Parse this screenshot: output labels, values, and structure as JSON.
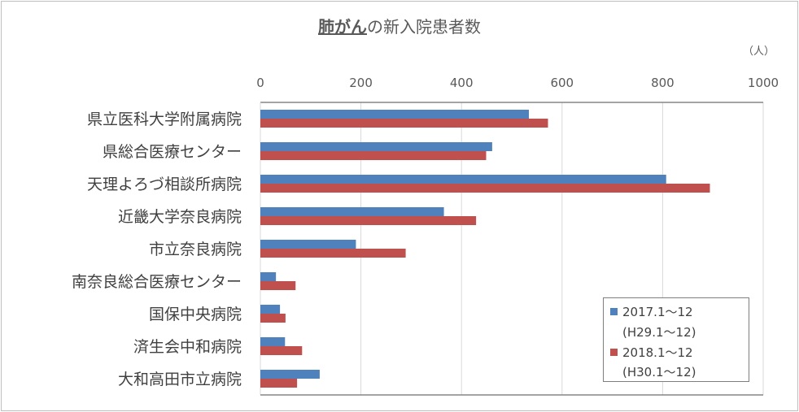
{
  "chart_data": {
    "type": "bar",
    "orientation": "horizontal",
    "title_underlined": "肺がん",
    "title_rest": "の新入院患者数",
    "unit": "（人）",
    "xlim": [
      0,
      1000
    ],
    "xticks": [
      "0",
      "200",
      "400",
      "600",
      "800",
      "1000"
    ],
    "grid": true,
    "legend_position": "bottom-right",
    "categories": [
      "県立医科大学附属病院",
      "県総合医療センター",
      "天理よろづ相談所病院",
      "近畿大学奈良病院",
      "市立奈良病院",
      "南奈良総合医療センター",
      "国保中央病院",
      "済生会中和病院",
      "大和高田市立病院"
    ],
    "series": [
      {
        "name": "2017.1～12",
        "sub": "(H29.1～12)",
        "color": "#4f81bd",
        "values": [
          534,
          461,
          807,
          365,
          190,
          31,
          39,
          49,
          118
        ]
      },
      {
        "name": "2018.1～12",
        "sub": "(H30.1～12)",
        "color": "#c0504d",
        "values": [
          572,
          449,
          894,
          429,
          289,
          70,
          50,
          83,
          73
        ]
      }
    ]
  }
}
